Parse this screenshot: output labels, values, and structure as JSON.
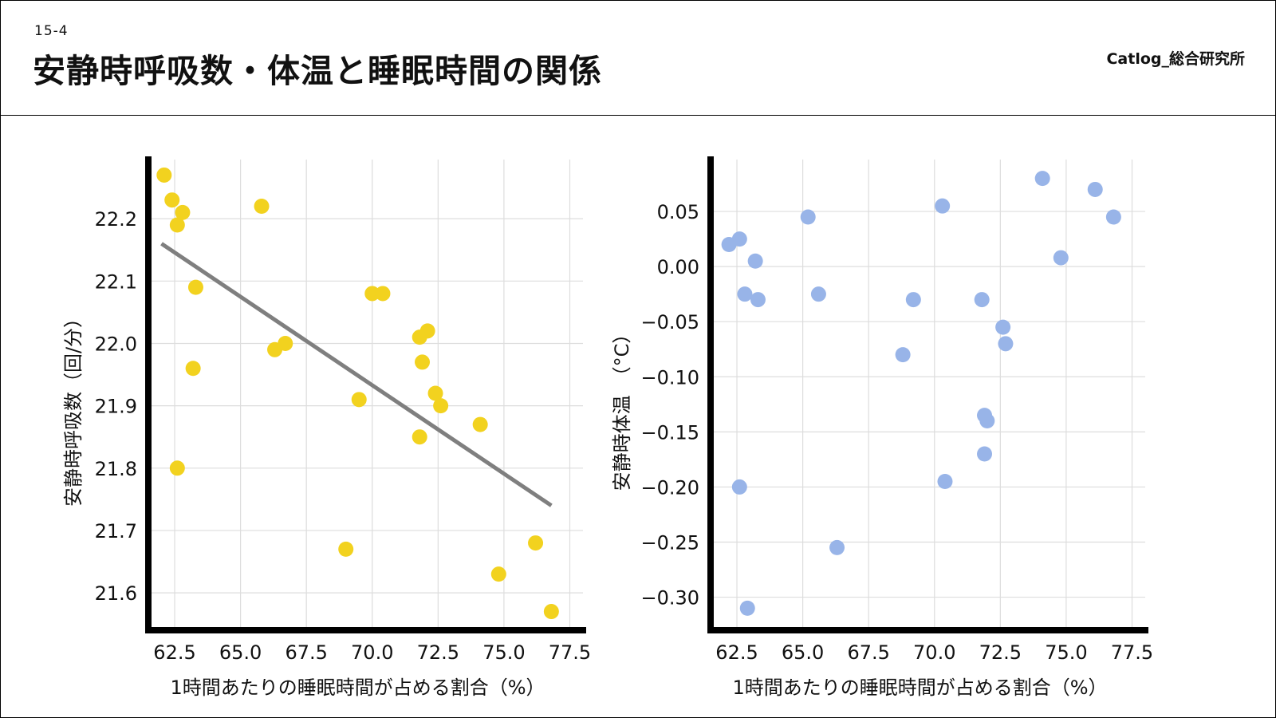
{
  "header": {
    "slide_number": "15-4",
    "title": "安静時呼吸数・体温と睡眠時間の関係",
    "brand": "Catlog_総合研究所"
  },
  "colors": {
    "left_points": "#f2d21f",
    "right_points": "#98b4e8",
    "trend_line": "#7f7f7f",
    "grid": "#dddddd",
    "axis": "#000000"
  },
  "chart_data": [
    {
      "type": "scatter",
      "title": "",
      "xlabel": "1時間あたりの睡眠時間が占める割合（%）",
      "ylabel": "安静時呼吸数（回/分）",
      "xlim": [
        61.5,
        78.0
      ],
      "ylim": [
        21.54,
        22.3
      ],
      "x_ticks": [
        "62.5",
        "65.0",
        "67.5",
        "70.0",
        "72.5",
        "75.0",
        "77.5"
      ],
      "y_ticks": [
        "21.6",
        "21.7",
        "21.8",
        "21.9",
        "22.0",
        "22.1",
        "22.2"
      ],
      "grid": true,
      "trend_line": {
        "x": [
          62.0,
          76.8
        ],
        "y": [
          22.16,
          21.74
        ]
      },
      "points": [
        {
          "x": 62.1,
          "y": 22.27
        },
        {
          "x": 62.4,
          "y": 22.23
        },
        {
          "x": 62.6,
          "y": 22.19
        },
        {
          "x": 62.8,
          "y": 22.21
        },
        {
          "x": 63.3,
          "y": 22.09
        },
        {
          "x": 63.2,
          "y": 21.96
        },
        {
          "x": 62.6,
          "y": 21.8
        },
        {
          "x": 65.8,
          "y": 22.22
        },
        {
          "x": 66.3,
          "y": 21.99
        },
        {
          "x": 66.7,
          "y": 22.0
        },
        {
          "x": 70.0,
          "y": 22.08
        },
        {
          "x": 70.4,
          "y": 22.08
        },
        {
          "x": 69.5,
          "y": 21.91
        },
        {
          "x": 69.0,
          "y": 21.67
        },
        {
          "x": 71.8,
          "y": 22.01
        },
        {
          "x": 72.1,
          "y": 22.02
        },
        {
          "x": 71.9,
          "y": 21.97
        },
        {
          "x": 72.4,
          "y": 21.92
        },
        {
          "x": 72.6,
          "y": 21.9
        },
        {
          "x": 71.8,
          "y": 21.85
        },
        {
          "x": 74.1,
          "y": 21.87
        },
        {
          "x": 74.8,
          "y": 21.63
        },
        {
          "x": 76.2,
          "y": 21.68
        },
        {
          "x": 76.8,
          "y": 21.57
        }
      ]
    },
    {
      "type": "scatter",
      "title": "",
      "xlabel": "1時間あたりの睡眠時間が占める割合（%）",
      "ylabel": "安静時体温　（°C）",
      "xlim": [
        61.5,
        78.0
      ],
      "ylim": [
        -0.33,
        0.1
      ],
      "x_ticks": [
        "62.5",
        "65.0",
        "67.5",
        "70.0",
        "72.5",
        "75.0",
        "77.5"
      ],
      "y_ticks": [
        "−0.30",
        "−0.25",
        "−0.20",
        "−0.15",
        "−0.10",
        "−0.05",
        "0.00",
        "0.05"
      ],
      "y_tick_values": [
        -0.3,
        -0.25,
        -0.2,
        -0.15,
        -0.1,
        -0.05,
        0.0,
        0.05
      ],
      "grid": true,
      "points": [
        {
          "x": 62.2,
          "y": 0.02
        },
        {
          "x": 62.6,
          "y": 0.025
        },
        {
          "x": 63.2,
          "y": 0.005
        },
        {
          "x": 62.8,
          "y": -0.025
        },
        {
          "x": 63.3,
          "y": -0.03
        },
        {
          "x": 62.6,
          "y": -0.2
        },
        {
          "x": 62.9,
          "y": -0.31
        },
        {
          "x": 65.2,
          "y": 0.045
        },
        {
          "x": 65.6,
          "y": -0.025
        },
        {
          "x": 66.3,
          "y": -0.255
        },
        {
          "x": 68.8,
          "y": -0.08
        },
        {
          "x": 69.2,
          "y": -0.03
        },
        {
          "x": 70.3,
          "y": 0.055
        },
        {
          "x": 70.4,
          "y": -0.195
        },
        {
          "x": 71.8,
          "y": -0.03
        },
        {
          "x": 71.9,
          "y": -0.135
        },
        {
          "x": 72.0,
          "y": -0.14
        },
        {
          "x": 71.9,
          "y": -0.17
        },
        {
          "x": 72.6,
          "y": -0.055
        },
        {
          "x": 72.7,
          "y": -0.07
        },
        {
          "x": 74.1,
          "y": 0.08
        },
        {
          "x": 74.8,
          "y": 0.008
        },
        {
          "x": 76.1,
          "y": 0.07
        },
        {
          "x": 76.8,
          "y": 0.045
        }
      ]
    }
  ]
}
